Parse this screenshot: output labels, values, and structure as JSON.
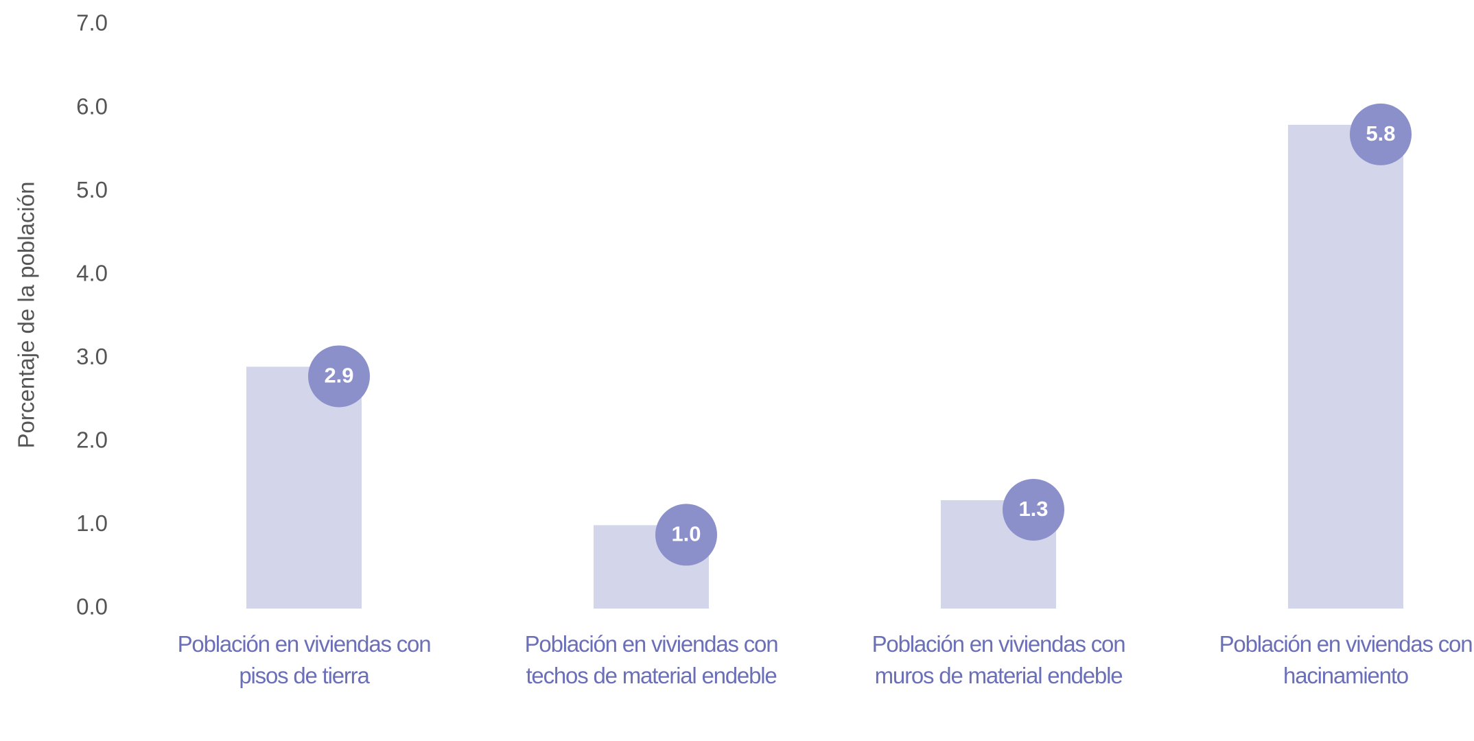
{
  "chart_data": {
    "type": "bar",
    "y_axis_label": "Porcentaje de la población",
    "categories": [
      "Población en viviendas con pisos de tierra",
      "Población en viviendas con techos de material endeble",
      "Población en viviendas con muros de material endeble",
      "Población en viviendas con hacinamiento"
    ],
    "values": [
      2.9,
      1,
      1.3,
      5.8
    ],
    "value_labels": [
      "2.9",
      "1.0",
      "1.3",
      "5.8"
    ],
    "color": "#d3d5ea",
    "label_color": "#8b8fca",
    "category_color": "#6a6fb8",
    "ylim": [
      0,
      7
    ],
    "yticks": [
      {
        "value": 0,
        "label": "0.0"
      },
      {
        "value": 1,
        "label": "1.0"
      },
      {
        "value": 2,
        "label": "2.0"
      },
      {
        "value": 3,
        "label": "3.0"
      },
      {
        "value": 4,
        "label": "4.0"
      },
      {
        "value": 5,
        "label": "5.0"
      },
      {
        "value": 6,
        "label": "6.0"
      },
      {
        "value": 7,
        "label": "7.0"
      }
    ],
    "grid": false
  }
}
